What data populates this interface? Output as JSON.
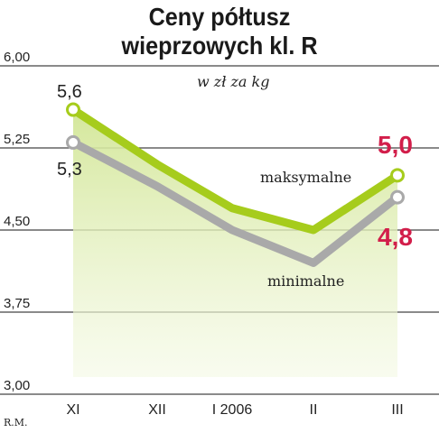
{
  "title_line1": "Ceny półtusz",
  "title_line2": "wieprzowych kl. R",
  "unit_note": "w zł za kg",
  "credit": "R.M.",
  "colors": {
    "max_line": "#a6cc1c",
    "min_line": "#a9a9a9",
    "highlight": "#d21e4a",
    "area_top": "#d7e8a0",
    "grid": "#444444"
  },
  "chart_data": {
    "type": "line",
    "title": "Ceny półtusz wieprzowych kl. R",
    "ylabel": "w zł za kg",
    "categories": [
      "XI",
      "XII",
      "I 2006",
      "II",
      "III"
    ],
    "ylim": [
      3.0,
      6.0
    ],
    "yticks": [
      "3,00",
      "3,75",
      "4,50",
      "5,25",
      "6,00"
    ],
    "grid": true,
    "series": [
      {
        "name": "maksymalne",
        "values": [
          5.6,
          5.1,
          4.7,
          4.5,
          5.0
        ]
      },
      {
        "name": "minimalne",
        "values": [
          5.3,
          4.9,
          4.5,
          4.2,
          4.8
        ]
      }
    ],
    "data_labels": {
      "max_first": "5,6",
      "min_first": "5,3",
      "max_last": "5,0",
      "min_last": "4,8"
    }
  }
}
